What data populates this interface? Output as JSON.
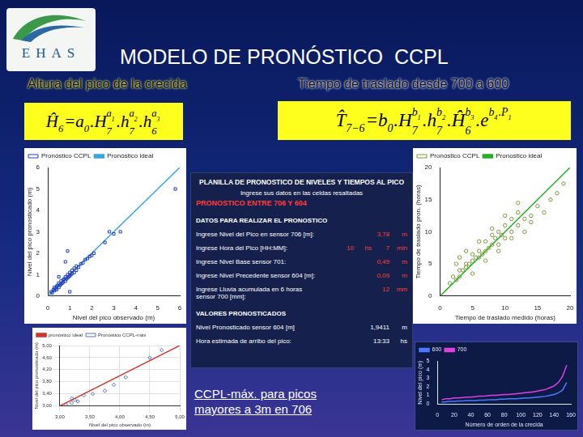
{
  "slide": {
    "logo": "EHAS",
    "title": "MODELO DE PRONÓSTICO  CCPL",
    "subtitles": [
      "Altura del pico de la crecida",
      "Tiempo de traslado desde 700 a 600"
    ],
    "formulas": [
      [
        {
          "base": "Ĥ",
          "sub": "6"
        },
        {
          "base": " = "
        },
        {
          "base": "a",
          "sub": "0"
        },
        {
          "base": ".H",
          "sub": "7",
          "sup": [
            {
              "base": "a",
              "sub": "1"
            }
          ]
        },
        {
          "base": ".h",
          "sub": "7",
          "sup": [
            {
              "base": "a",
              "sub": "2"
            }
          ]
        },
        {
          "base": ".h",
          "sub": "6",
          "sup": [
            {
              "base": "a",
              "sub": "3"
            }
          ]
        }
      ],
      [
        {
          "base": "T̂",
          "sub": "7−6"
        },
        {
          "base": " = "
        },
        {
          "base": "b",
          "sub": "0"
        },
        {
          "base": ".H",
          "sub": "7",
          "sup": [
            {
              "base": "b",
              "sub": "1"
            }
          ]
        },
        {
          "base": ".h",
          "sub": "7",
          "sup": [
            {
              "base": "b",
              "sub": "2"
            }
          ]
        },
        {
          "base": ".Ĥ",
          "sub": "6",
          "sup": [
            {
              "base": "b",
              "sub": "3"
            }
          ]
        },
        {
          "base": ".e",
          "sup": [
            {
              "base": "b",
              "sub": "4"
            },
            {
              "base": ".P",
              "sub": "1"
            }
          ]
        }
      ]
    ],
    "table": {
      "title": "PLANILLA DE PRONOSTICO DE NIVELES Y TIEMPOS AL PICO",
      "instruction": "Ingrese sus datos en las celdas resaltadas",
      "heading": "PRONOSTICO ENTRE 706 Y 604",
      "inputs_title": "DATOS PARA REALIZAR EL PRONOSTICO",
      "inputs": [
        {
          "label": "Ingrese Nivel del Pico en sensor 706 [m]:",
          "cells": [
            "3,78",
            "m"
          ]
        },
        {
          "label": "Ingrese Hora del Pico [HH:MM]:",
          "cells": [
            "10",
            "hs",
            "7",
            "min"
          ]
        },
        {
          "label": "Ingrese Nivel Base sensor 701:",
          "cells": [
            "0,49",
            "m"
          ]
        },
        {
          "label": "Ingrese Nivel Precedente sensor 604 [m]:",
          "cells": [
            "0,09",
            "m"
          ]
        },
        {
          "label": "Ingrese Lluvia acumulada en 6 horas sensor 700 [mm]:",
          "cells": [
            "12",
            "mm"
          ]
        }
      ],
      "outputs_title": "VALORES PRONOSTICADOS",
      "outputs": [
        {
          "label": "Nivel Pronosticado sensor 604 [m]",
          "cells": [
            "1,9411",
            "m"
          ]
        },
        {
          "label": "Hora estimada de arribo del pico:",
          "cells": [
            "13:33",
            "hs"
          ]
        }
      ]
    },
    "note": "CCPL-máx. para picos mayores a 3m en 706"
  },
  "chart_data": [
    {
      "type": "scatter",
      "x_label": "Nivel del pico observado (m)",
      "y_label": "Nivel del pico pronosticado (m)",
      "xlim": [
        0,
        6
      ],
      "ylim": [
        0,
        6
      ],
      "xticks": [
        0,
        1,
        2,
        3,
        4,
        5,
        6
      ],
      "yticks": [
        0,
        1,
        2,
        3,
        4,
        5,
        6
      ],
      "grid": false,
      "legend": "upper left",
      "series": [
        {
          "name": "Pronóstico CCPL",
          "type": "scatter",
          "color": "#1f3fbf",
          "marker": "square",
          "x": [
            0.15,
            0.2,
            0.25,
            0.3,
            0.3,
            0.35,
            0.4,
            0.4,
            0.45,
            0.5,
            0.5,
            0.55,
            0.6,
            0.6,
            0.65,
            0.7,
            0.7,
            0.75,
            0.8,
            0.8,
            0.85,
            0.9,
            0.9,
            0.95,
            1.0,
            1.0,
            1.05,
            1.1,
            1.1,
            1.2,
            1.2,
            1.3,
            1.3,
            1.4,
            1.5,
            1.6,
            1.7,
            1.8,
            1.9,
            2.0,
            2.1,
            0.9,
            1.0,
            2.6,
            2.8,
            3.0,
            3.3,
            0.5,
            0.8,
            5.8
          ],
          "values": [
            0.2,
            0.15,
            0.3,
            0.25,
            0.4,
            0.35,
            0.45,
            0.3,
            0.5,
            0.4,
            0.6,
            0.5,
            0.55,
            0.7,
            0.6,
            0.75,
            0.65,
            0.8,
            0.7,
            0.9,
            0.8,
            0.85,
            1.0,
            0.9,
            1.1,
            0.95,
            1.0,
            1.05,
            1.2,
            1.1,
            1.3,
            1.2,
            1.4,
            1.35,
            1.5,
            1.55,
            1.7,
            1.75,
            1.85,
            1.9,
            2.0,
            2.1,
            0.2,
            2.5,
            3.0,
            2.9,
            3.0,
            0.9,
            1.6,
            5.0
          ]
        },
        {
          "name": "Pronóstico ideal",
          "type": "line",
          "color": "#3aa6e0",
          "marker": "none",
          "line_style": "solid",
          "x": [
            0,
            6
          ],
          "values": [
            0,
            6
          ]
        }
      ]
    },
    {
      "type": "scatter",
      "x_label": "Nivel del pico observado (m)",
      "y_label": "Nivel del pico pronosticado (m)",
      "xlim": [
        3,
        5
      ],
      "ylim": [
        3,
        5
      ],
      "xticks": [
        {
          "value": 3,
          "label": "3,00"
        },
        {
          "value": 3.5,
          "label": "3,50"
        },
        {
          "value": 4,
          "label": "4,00"
        },
        {
          "value": 4.5,
          "label": "4,50"
        },
        {
          "value": 5,
          "label": "5,00"
        }
      ],
      "yticks": [
        {
          "value": 3,
          "label": "3,00"
        },
        {
          "value": 3.4,
          "label": "3,40"
        },
        {
          "value": 3.8,
          "label": "3,80"
        },
        {
          "value": 4.2,
          "label": "4,20"
        },
        {
          "value": 4.6,
          "label": "4,60"
        },
        {
          "value": 5,
          "label": "5,00"
        }
      ],
      "grid": true,
      "legend": "upper left",
      "series": [
        {
          "name": "pronóstico ideal",
          "type": "line",
          "color": "#d0342c",
          "marker": "none",
          "line_style": "solid",
          "x": [
            3,
            5
          ],
          "values": [
            3,
            5
          ]
        },
        {
          "name": "Pronóstico CCPL-máx",
          "type": "scatter",
          "color": "#4a74c8",
          "marker": "diamond",
          "x": [
            3.1,
            3.2,
            3.2,
            3.25,
            3.3,
            3.4,
            3.55,
            3.75,
            3.9,
            4.1,
            4.5,
            4.7
          ],
          "values": [
            3.05,
            3.1,
            3.25,
            3.2,
            3.15,
            3.35,
            3.4,
            3.5,
            3.7,
            3.95,
            4.6,
            4.85
          ]
        }
      ]
    },
    {
      "type": "scatter",
      "x_label": "Tiempo de traslado medido (horas)",
      "y_label": "Tiempo de traslado pron. (horas)",
      "xlim": [
        0,
        20
      ],
      "ylim": [
        0,
        20
      ],
      "xticks": [
        0,
        5,
        10,
        15,
        20
      ],
      "yticks": [
        0,
        5,
        10,
        15,
        20
      ],
      "grid": false,
      "legend": "upper left",
      "series": [
        {
          "name": "Pronóstico CCPL",
          "type": "scatter",
          "color": "#7a9a3a",
          "marker": "circle",
          "x": [
            1.5,
            2,
            2.5,
            3,
            3,
            3.5,
            4,
            4,
            4.5,
            5,
            5,
            5.5,
            6,
            6,
            6.5,
            7,
            7,
            7.5,
            8,
            8,
            8.5,
            9,
            9,
            9.5,
            10,
            10,
            11,
            11,
            12,
            12,
            13,
            14,
            15,
            16,
            17,
            18,
            3,
            4,
            5,
            6,
            7,
            8,
            9,
            10,
            11,
            12,
            13,
            14,
            2.5,
            19
          ],
          "values": [
            2,
            3,
            2.5,
            4,
            3,
            4,
            4.5,
            5,
            5,
            5.5,
            6.5,
            6,
            6,
            7,
            6.5,
            7,
            8.5,
            7.5,
            8,
            9.5,
            9,
            8,
            10,
            9.5,
            9,
            11,
            10,
            12,
            11,
            13,
            12,
            12.5,
            14,
            13,
            15,
            16,
            6,
            7,
            3.5,
            8.5,
            5.5,
            10.5,
            7,
            12.5,
            9,
            14.5,
            10,
            11.5,
            5,
            17.5
          ]
        },
        {
          "name": "Pronostico ideal",
          "type": "line",
          "color": "#22b022",
          "marker": "none",
          "line_style": "solid",
          "x": [
            0,
            20
          ],
          "values": [
            0,
            20
          ]
        }
      ]
    },
    {
      "type": "line",
      "x_label": "Número de orden de la crecida",
      "y_label": "Nivel del pico (m)",
      "xlim": [
        0,
        160
      ],
      "ylim": [
        0,
        5
      ],
      "xticks": [
        0,
        20,
        40,
        60,
        80,
        100,
        120,
        140,
        160
      ],
      "yticks": [
        0,
        1,
        2,
        3,
        4,
        5
      ],
      "grid": false,
      "legend": "upper left",
      "x": [
        5,
        10,
        15,
        20,
        25,
        30,
        35,
        40,
        45,
        50,
        55,
        60,
        65,
        70,
        75,
        80,
        85,
        90,
        95,
        100,
        105,
        110,
        115,
        120,
        125,
        130,
        135,
        140,
        145,
        150,
        155
      ],
      "series": [
        {
          "name": "600",
          "type": "line",
          "color": "#4a7aff",
          "marker": "none",
          "line_style": "solid",
          "values": [
            0.2,
            0.25,
            0.3,
            0.3,
            0.35,
            0.35,
            0.4,
            0.4,
            0.4,
            0.45,
            0.45,
            0.5,
            0.5,
            0.5,
            0.55,
            0.55,
            0.6,
            0.6,
            0.6,
            0.65,
            0.7,
            0.7,
            0.75,
            0.8,
            0.85,
            0.9,
            1.0,
            1.1,
            1.3,
            1.6,
            2.5
          ]
        },
        {
          "name": "700",
          "type": "line",
          "color": "#e040e0",
          "marker": "none",
          "line_style": "solid",
          "values": [
            0.5,
            0.6,
            0.6,
            0.7,
            0.7,
            0.75,
            0.8,
            0.8,
            0.85,
            0.9,
            0.9,
            0.95,
            1.0,
            1.0,
            1.05,
            1.1,
            1.1,
            1.15,
            1.2,
            1.25,
            1.3,
            1.35,
            1.4,
            1.5,
            1.6,
            1.7,
            1.9,
            2.1,
            2.5,
            3.2,
            4.5
          ]
        }
      ]
    }
  ]
}
